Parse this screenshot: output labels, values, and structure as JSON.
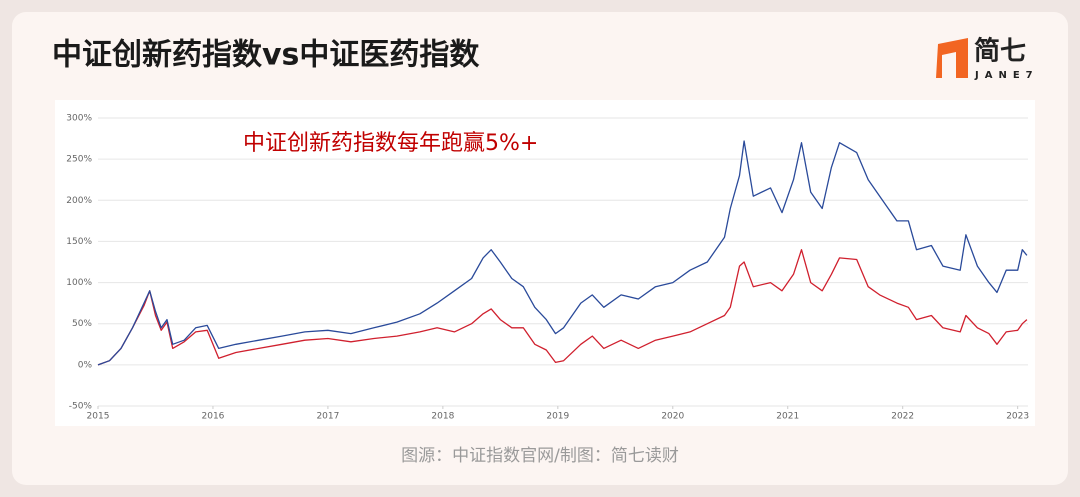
{
  "chart_data": {
    "type": "line",
    "title": "中证创新药指数vs中证医药指数",
    "annotation": "中证创新药指数每年跑赢5%+",
    "source": "图源：中证指数官网/制图：简七读财",
    "x": [
      2015.0,
      2015.1,
      2015.2,
      2015.3,
      2015.4,
      2015.45,
      2015.5,
      2015.55,
      2015.6,
      2015.65,
      2015.75,
      2015.85,
      2015.95,
      2016.05,
      2016.2,
      2016.4,
      2016.6,
      2016.8,
      2017.0,
      2017.2,
      2017.4,
      2017.6,
      2017.8,
      2017.95,
      2018.1,
      2018.25,
      2018.35,
      2018.42,
      2018.5,
      2018.6,
      2018.7,
      2018.8,
      2018.9,
      2018.98,
      2019.05,
      2019.2,
      2019.3,
      2019.4,
      2019.55,
      2019.7,
      2019.85,
      2020.0,
      2020.15,
      2020.3,
      2020.45,
      2020.5,
      2020.58,
      2020.62,
      2020.7,
      2020.85,
      2020.95,
      2021.05,
      2021.12,
      2021.2,
      2021.3,
      2021.38,
      2021.45,
      2021.6,
      2021.7,
      2021.8,
      2021.95,
      2022.05,
      2022.12,
      2022.25,
      2022.35,
      2022.5,
      2022.55,
      2022.65,
      2022.75,
      2022.82,
      2022.9,
      2023.0,
      2023.04,
      2023.08
    ],
    "series": [
      {
        "color": "#2a4a9a",
        "values": [
          0,
          5,
          20,
          45,
          75,
          90,
          65,
          45,
          55,
          25,
          30,
          45,
          48,
          20,
          25,
          30,
          35,
          40,
          42,
          38,
          45,
          52,
          62,
          75,
          90,
          105,
          130,
          140,
          125,
          105,
          95,
          70,
          55,
          38,
          45,
          75,
          85,
          70,
          85,
          80,
          95,
          100,
          115,
          125,
          155,
          190,
          230,
          272,
          205,
          215,
          185,
          225,
          270,
          210,
          190,
          240,
          270,
          258,
          225,
          205,
          175,
          175,
          140,
          145,
          120,
          115,
          158,
          120,
          100,
          88,
          115,
          115,
          140,
          133
        ]
      },
      {
        "color": "#d0202e",
        "values": [
          0,
          5,
          20,
          45,
          72,
          90,
          60,
          42,
          52,
          20,
          28,
          40,
          42,
          8,
          15,
          20,
          25,
          30,
          32,
          28,
          32,
          35,
          40,
          45,
          40,
          50,
          62,
          68,
          55,
          45,
          45,
          25,
          18,
          3,
          5,
          25,
          35,
          20,
          30,
          20,
          30,
          35,
          40,
          50,
          60,
          70,
          120,
          125,
          95,
          100,
          90,
          110,
          140,
          100,
          90,
          110,
          130,
          128,
          95,
          85,
          75,
          70,
          55,
          60,
          45,
          40,
          60,
          45,
          38,
          25,
          40,
          42,
          50,
          55
        ]
      }
    ],
    "xlim": [
      2015,
      2023.09
    ],
    "xticks": [
      2015,
      2016,
      2017,
      2018,
      2019,
      2020,
      2021,
      2022,
      2023
    ],
    "ylim": [
      -50,
      300
    ],
    "yticks": [
      {
        "value": -50,
        "label": "-50%"
      },
      {
        "value": 0,
        "label": "0%"
      },
      {
        "value": 50,
        "label": "50%"
      },
      {
        "value": 100,
        "label": "100%"
      },
      {
        "value": 150,
        "label": "150%"
      },
      {
        "value": 200,
        "label": "200%"
      },
      {
        "value": 250,
        "label": "250%"
      },
      {
        "value": 300,
        "label": "300%"
      }
    ],
    "grid": true
  },
  "logo": {
    "text": "简七",
    "subtext": "JANE7"
  }
}
